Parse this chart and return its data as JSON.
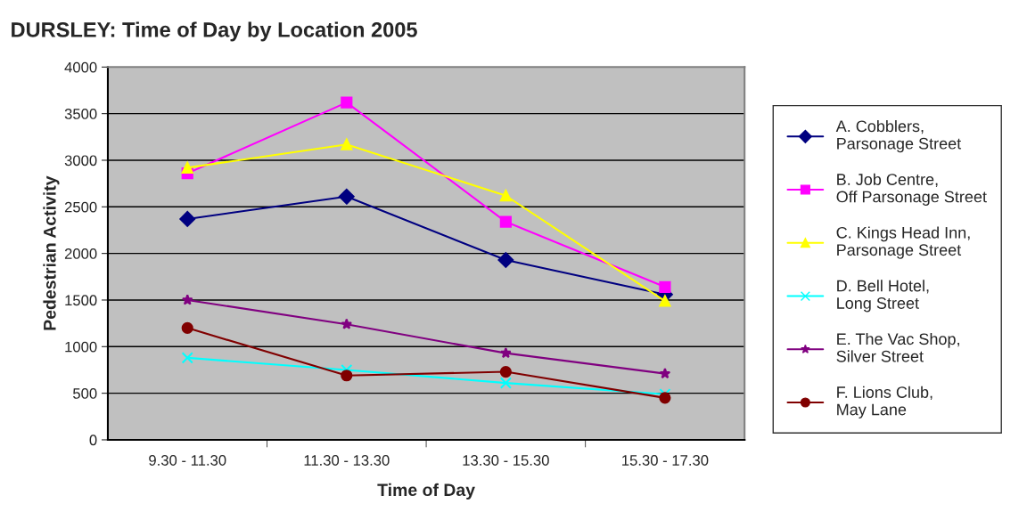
{
  "chart_data": {
    "type": "line",
    "title": "DURSLEY: Time of Day by Location 2005",
    "xlabel": "Time of Day",
    "ylabel": "Pedestrian Activity",
    "categories": [
      "9.30 - 11.30",
      "11.30 - 13.30",
      "13.30 - 15.30",
      "15.30 - 17.30"
    ],
    "series": [
      {
        "name": "A. Cobblers, Parsonage Street",
        "color": "#000080",
        "marker": "diamond",
        "values": [
          2370,
          2610,
          1930,
          1560
        ]
      },
      {
        "name": "B. Job Centre, Off Parsonage Street",
        "color": "#ff00ff",
        "marker": "square",
        "values": [
          2860,
          3620,
          2340,
          1640
        ]
      },
      {
        "name": "C. Kings Head Inn, Parsonage Street",
        "color": "#ffff00",
        "marker": "triangle",
        "values": [
          2920,
          3170,
          2620,
          1490
        ]
      },
      {
        "name": "D. Bell Hotel, Long Street",
        "color": "#00ffff",
        "marker": "cross",
        "values": [
          880,
          750,
          610,
          490
        ]
      },
      {
        "name": "E. The Vac Shop, Silver Street",
        "color": "#800080",
        "marker": "star",
        "values": [
          1500,
          1240,
          930,
          710
        ]
      },
      {
        "name": "F. Lions Club, May Lane",
        "color": "#800000",
        "marker": "circle",
        "values": [
          1200,
          690,
          730,
          450
        ]
      }
    ],
    "ylim": [
      0,
      4000
    ],
    "yticks": [
      0,
      500,
      1000,
      1500,
      2000,
      2500,
      3000,
      3500,
      4000
    ],
    "grid": "y",
    "legend": "right"
  }
}
